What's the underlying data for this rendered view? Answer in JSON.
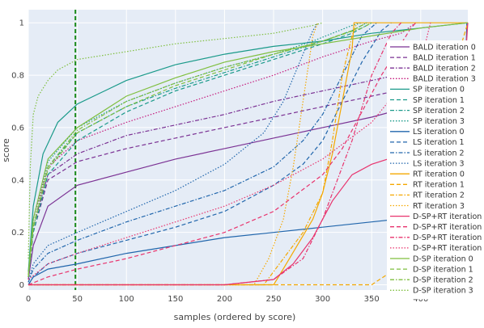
{
  "chart_data": {
    "type": "line",
    "xlabel": "samples (ordered by score)",
    "ylabel": "score",
    "xlim": [
      0,
      448
    ],
    "ylim": [
      -0.02,
      1.05
    ],
    "xticks": [
      0,
      50,
      100,
      150,
      200,
      250,
      300,
      350,
      400
    ],
    "yticks": [
      0,
      0.2,
      0.4,
      0.6,
      0.8,
      1
    ],
    "grid": true,
    "legend_position": "right",
    "vline": {
      "x": 48,
      "color": "#1a8a1a",
      "style": "dash"
    },
    "series": [
      {
        "name": "BALD iteration 0",
        "color": "#7b3294",
        "dash": "solid",
        "x": [
          0,
          5,
          20,
          50,
          100,
          150,
          200,
          250,
          300,
          350,
          400,
          448
        ],
        "y": [
          0.02,
          0.15,
          0.3,
          0.38,
          0.43,
          0.48,
          0.52,
          0.56,
          0.6,
          0.64,
          0.69,
          0.72
        ]
      },
      {
        "name": "BALD iteration 1",
        "color": "#7b3294",
        "dash": "dash",
        "x": [
          0,
          5,
          20,
          50,
          100,
          150,
          200,
          250,
          300,
          350,
          400,
          448
        ],
        "y": [
          0.03,
          0.2,
          0.4,
          0.47,
          0.52,
          0.56,
          0.6,
          0.64,
          0.68,
          0.72,
          0.76,
          0.8
        ]
      },
      {
        "name": "BALD iteration 2",
        "color": "#7b3294",
        "dash": "dashdot",
        "x": [
          0,
          5,
          20,
          50,
          100,
          150,
          200,
          250,
          300,
          350,
          400,
          448
        ],
        "y": [
          0.03,
          0.22,
          0.42,
          0.5,
          0.57,
          0.61,
          0.65,
          0.7,
          0.74,
          0.78,
          0.82,
          0.86
        ]
      },
      {
        "name": "BALD iteration 3",
        "color": "#c51b7d",
        "dash": "dot",
        "x": [
          0,
          5,
          20,
          50,
          100,
          150,
          200,
          250,
          300,
          350,
          380,
          395
        ],
        "y": [
          0.03,
          0.25,
          0.45,
          0.55,
          0.62,
          0.68,
          0.74,
          0.8,
          0.87,
          0.93,
          0.96,
          1.0
        ]
      },
      {
        "name": "SP iteration 0",
        "color": "#1a9a8a",
        "dash": "solid",
        "x": [
          0,
          5,
          15,
          30,
          50,
          100,
          150,
          200,
          250,
          300,
          350,
          400,
          448
        ],
        "y": [
          0.05,
          0.3,
          0.5,
          0.62,
          0.69,
          0.78,
          0.84,
          0.88,
          0.91,
          0.93,
          0.96,
          0.98,
          1.0
        ]
      },
      {
        "name": "SP iteration 1",
        "color": "#1a9a8a",
        "dash": "dash",
        "x": [
          0,
          5,
          20,
          50,
          100,
          150,
          200,
          250,
          300,
          330,
          350
        ],
        "y": [
          0.03,
          0.2,
          0.42,
          0.55,
          0.66,
          0.74,
          0.8,
          0.86,
          0.92,
          0.96,
          1.0
        ]
      },
      {
        "name": "SP iteration 2",
        "color": "#1a9a8a",
        "dash": "dashdot",
        "x": [
          0,
          5,
          20,
          50,
          100,
          150,
          200,
          250,
          300,
          330,
          345
        ],
        "y": [
          0.03,
          0.22,
          0.45,
          0.58,
          0.68,
          0.75,
          0.81,
          0.87,
          0.93,
          0.97,
          1.0
        ]
      },
      {
        "name": "SP iteration 3",
        "color": "#1a9a8a",
        "dash": "dot",
        "x": [
          0,
          5,
          20,
          50,
          100,
          150,
          200,
          250,
          290,
          310,
          330,
          340
        ],
        "y": [
          0.04,
          0.25,
          0.47,
          0.6,
          0.7,
          0.77,
          0.83,
          0.88,
          0.93,
          0.96,
          0.99,
          1.0
        ]
      },
      {
        "name": "LS iteration 0",
        "color": "#2166ac",
        "dash": "solid",
        "x": [
          0,
          5,
          20,
          50,
          100,
          150,
          200,
          250,
          300,
          350,
          400,
          440,
          445,
          447
        ],
        "y": [
          0.0,
          0.03,
          0.06,
          0.08,
          0.12,
          0.15,
          0.18,
          0.2,
          0.22,
          0.24,
          0.26,
          0.28,
          0.72,
          1.0
        ]
      },
      {
        "name": "LS iteration 1",
        "color": "#2166ac",
        "dash": "dash",
        "x": [
          0,
          5,
          20,
          50,
          100,
          150,
          200,
          250,
          280,
          300,
          320,
          340,
          360,
          370
        ],
        "y": [
          0.0,
          0.03,
          0.08,
          0.12,
          0.17,
          0.22,
          0.28,
          0.38,
          0.46,
          0.55,
          0.7,
          0.85,
          0.97,
          1.0
        ]
      },
      {
        "name": "LS iteration 2",
        "color": "#2166ac",
        "dash": "dashdot",
        "x": [
          0,
          5,
          20,
          50,
          100,
          150,
          200,
          250,
          280,
          300,
          320,
          340,
          355
        ],
        "y": [
          0.01,
          0.06,
          0.12,
          0.17,
          0.24,
          0.3,
          0.36,
          0.45,
          0.55,
          0.65,
          0.8,
          0.95,
          1.0
        ]
      },
      {
        "name": "LS iteration 3",
        "color": "#2166ac",
        "dash": "dot",
        "x": [
          0,
          5,
          20,
          50,
          100,
          150,
          200,
          240,
          260,
          280,
          290,
          295
        ],
        "y": [
          0.01,
          0.08,
          0.15,
          0.2,
          0.28,
          0.36,
          0.46,
          0.58,
          0.7,
          0.88,
          0.97,
          1.0
        ]
      },
      {
        "name": "RT iteration 0",
        "color": "#f5a800",
        "dash": "solid",
        "x": [
          0,
          250,
          255,
          290,
          300,
          310,
          320,
          330,
          332,
          340,
          448
        ],
        "y": [
          0.0,
          0.0,
          0.03,
          0.25,
          0.35,
          0.5,
          0.7,
          0.9,
          1.0,
          1.0,
          1.0
        ]
      },
      {
        "name": "RT iteration 1",
        "color": "#f5a800",
        "dash": "dash",
        "x": [
          0,
          350,
          370,
          390,
          400,
          420,
          430,
          440,
          448
        ],
        "y": [
          0.0,
          0.0,
          0.05,
          0.1,
          0.2,
          0.4,
          0.6,
          0.9,
          1.0
        ]
      },
      {
        "name": "RT iteration 2",
        "color": "#f5a800",
        "dash": "dashdot",
        "x": [
          0,
          240,
          260,
          280,
          300,
          310,
          320,
          330,
          335
        ],
        "y": [
          0.0,
          0.0,
          0.1,
          0.2,
          0.35,
          0.55,
          0.8,
          0.95,
          1.0
        ]
      },
      {
        "name": "RT iteration 3",
        "color": "#f5a800",
        "dash": "dot",
        "x": [
          0,
          230,
          245,
          260,
          270,
          280,
          290,
          295
        ],
        "y": [
          0.0,
          0.0,
          0.1,
          0.25,
          0.45,
          0.7,
          0.95,
          1.0
        ]
      },
      {
        "name": "D-SP+RT iteration 0",
        "color": "#e8336d",
        "dash": "solid",
        "x": [
          0,
          200,
          250,
          270,
          290,
          300,
          310,
          330,
          350,
          400,
          440,
          448
        ],
        "y": [
          0.0,
          0.0,
          0.02,
          0.08,
          0.18,
          0.25,
          0.32,
          0.42,
          0.46,
          0.52,
          0.56,
          1.0
        ]
      },
      {
        "name": "D-SP+RT iteration 1",
        "color": "#e8336d",
        "dash": "dash",
        "x": [
          0,
          20,
          50,
          100,
          150,
          200,
          250,
          300,
          320,
          340,
          360,
          380,
          390,
          395
        ],
        "y": [
          0.0,
          0.03,
          0.06,
          0.1,
          0.15,
          0.2,
          0.28,
          0.42,
          0.52,
          0.66,
          0.8,
          0.92,
          0.98,
          1.0
        ]
      },
      {
        "name": "D-SP+RT iteration 2",
        "color": "#e8336d",
        "dash": "dashdot",
        "x": [
          0,
          50,
          100,
          200,
          250,
          280,
          300,
          330,
          350,
          370,
          380
        ],
        "y": [
          0.0,
          0.0,
          0.0,
          0.0,
          0.02,
          0.1,
          0.25,
          0.55,
          0.8,
          0.96,
          1.0
        ]
      },
      {
        "name": "D-SP+RT iteration 3",
        "color": "#e8336d",
        "dash": "dot",
        "x": [
          0,
          20,
          50,
          100,
          150,
          200,
          250,
          300,
          350,
          400,
          410
        ],
        "y": [
          0.02,
          0.08,
          0.12,
          0.18,
          0.24,
          0.3,
          0.38,
          0.48,
          0.62,
          0.85,
          1.0
        ]
      },
      {
        "name": "D-SP iteration 0",
        "color": "#7fbf3f",
        "dash": "solid",
        "x": [
          0,
          5,
          20,
          50,
          100,
          150,
          200,
          250,
          300,
          350,
          400,
          448
        ],
        "y": [
          0.04,
          0.25,
          0.48,
          0.6,
          0.72,
          0.79,
          0.85,
          0.89,
          0.92,
          0.95,
          0.98,
          1.0
        ]
      },
      {
        "name": "D-SP iteration 1",
        "color": "#7fbf3f",
        "dash": "dash",
        "x": [
          0,
          5,
          20,
          50,
          100,
          150,
          200,
          250,
          300,
          330,
          345
        ],
        "y": [
          0.03,
          0.22,
          0.44,
          0.58,
          0.68,
          0.76,
          0.82,
          0.88,
          0.93,
          0.97,
          1.0
        ]
      },
      {
        "name": "D-SP iteration 2",
        "color": "#7fbf3f",
        "dash": "dashdot",
        "x": [
          0,
          5,
          20,
          50,
          100,
          150,
          200,
          250,
          300,
          340,
          350
        ],
        "y": [
          0.03,
          0.22,
          0.45,
          0.59,
          0.7,
          0.77,
          0.83,
          0.88,
          0.93,
          0.98,
          1.0
        ]
      },
      {
        "name": "D-SP iteration 3",
        "color": "#7fbf3f",
        "dash": "dot",
        "x": [
          0,
          2,
          5,
          10,
          20,
          30,
          50,
          100,
          150,
          200,
          250,
          290,
          300
        ],
        "y": [
          0.1,
          0.45,
          0.65,
          0.72,
          0.78,
          0.82,
          0.86,
          0.89,
          0.92,
          0.94,
          0.96,
          0.99,
          1.0
        ]
      }
    ]
  }
}
